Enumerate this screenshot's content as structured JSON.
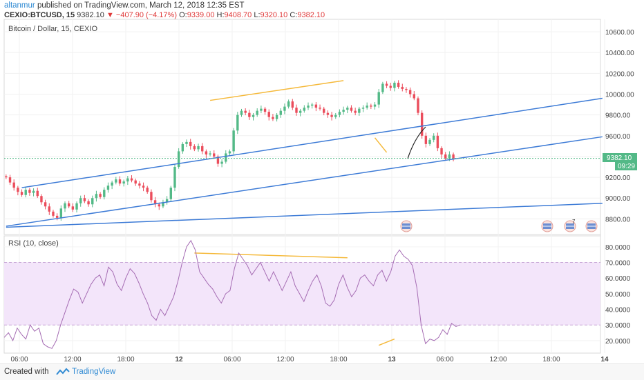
{
  "header": {
    "author": "altanmur",
    "published_text": "published on TradingView.com, March 12, 2018 12:35 EST",
    "symbol": "CEXIO:BTCUSD, 15",
    "last": "9382.10",
    "change": "−407.90 (−4.17%)",
    "o_label": "O:",
    "o_value": "9339.00",
    "h_label": "H:",
    "h_value": "9408.70",
    "l_label": "L:",
    "l_value": "9320.10",
    "c_label": "C:",
    "c_value": "9382.10"
  },
  "price_pane": {
    "title": "Bitcoin / Dollar, 15, CEXIO",
    "last_price": "9382.10",
    "countdown": "09:29",
    "event_badge_count": "7"
  },
  "rsi_pane": {
    "title": "RSI (10, close)"
  },
  "footer": {
    "created_with": "Created with",
    "brand": "TradingView"
  },
  "colors": {
    "up": "#53b987",
    "down": "#eb4d5c",
    "trend": "#3d7bd6",
    "divergence": "#f5b93a",
    "rsi_line": "#a56cb3",
    "rsi_band": "#f3e5fa"
  },
  "chart_data": [
    {
      "type": "candlestick",
      "title": "Bitcoin / Dollar, 15, CEXIO",
      "ylim": [
        8650,
        10720
      ],
      "y_ticks": [
        "10600.00",
        "10400.00",
        "10200.00",
        "10000.00",
        "9800.00",
        "9600.00",
        "9400.00",
        "9200.00",
        "9000.00",
        "8800.00"
      ],
      "x_ticks": [
        "06:00",
        "12:00",
        "18:00",
        "12",
        "06:00",
        "12:00",
        "18:00",
        "13",
        "06:00",
        "12:00",
        "18:00",
        "14"
      ],
      "closes": [
        9200,
        9150,
        9100,
        9060,
        9030,
        9080,
        9050,
        9070,
        9020,
        8960,
        8920,
        8870,
        8830,
        8810,
        8900,
        8950,
        8920,
        8890,
        8950,
        9000,
        8970,
        8940,
        9000,
        9040,
        9010,
        9080,
        9120,
        9150,
        9180,
        9140,
        9160,
        9190,
        9170,
        9140,
        9120,
        9100,
        9060,
        8980,
        8940,
        8920,
        8960,
        8990,
        9100,
        9300,
        9450,
        9520,
        9540,
        9500,
        9470,
        9500,
        9450,
        9420,
        9430,
        9400,
        9330,
        9350,
        9430,
        9450,
        9650,
        9800,
        9840,
        9820,
        9780,
        9800,
        9840,
        9860,
        9830,
        9780,
        9760,
        9800,
        9840,
        9880,
        9930,
        9870,
        9820,
        9840,
        9870,
        9890,
        9900,
        9870,
        9860,
        9820,
        9800,
        9780,
        9800,
        9830,
        9850,
        9870,
        9840,
        9820,
        9860,
        9870,
        9890,
        9880,
        9900,
        10020,
        10100,
        10080,
        10060,
        10110,
        10070,
        10050,
        10040,
        10000,
        9960,
        9820,
        9600,
        9520,
        9560,
        9600,
        9480,
        9420,
        9380,
        9420,
        9382
      ],
      "current_price": 9382.1,
      "trendlines": [
        {
          "name": "upper-channel",
          "from": [
            4,
            9100
          ],
          "to": [
            152,
            9960
          ]
        },
        {
          "name": "lower-channel",
          "from": [
            0,
            8730
          ],
          "to": [
            152,
            9590
          ]
        },
        {
          "name": "long-term-support",
          "from": [
            0,
            8720
          ],
          "to": [
            152,
            8950
          ]
        },
        {
          "name": "price-divergence-top",
          "from": [
            52,
            9940
          ],
          "to": [
            86,
            10130
          ]
        },
        {
          "name": "price-divergence-drop",
          "from": [
            94,
            9580
          ],
          "to": [
            97,
            9440
          ]
        }
      ]
    },
    {
      "type": "line",
      "title": "RSI (10, close)",
      "ylim": [
        12,
        87
      ],
      "y_ticks": [
        "80.0000",
        "70.0000",
        "60.0000",
        "50.0000",
        "40.0000",
        "30.0000",
        "20.0000"
      ],
      "band": [
        30,
        70
      ],
      "values": [
        22,
        25,
        20,
        28,
        24,
        21,
        30,
        26,
        28,
        18,
        16,
        15,
        20,
        30,
        38,
        46,
        53,
        51,
        44,
        50,
        56,
        60,
        62,
        55,
        67,
        64,
        56,
        52,
        60,
        66,
        63,
        57,
        50,
        44,
        36,
        33,
        40,
        36,
        42,
        48,
        58,
        70,
        80,
        84,
        78,
        64,
        60,
        56,
        53,
        48,
        44,
        50,
        52,
        66,
        76,
        72,
        68,
        62,
        66,
        70,
        64,
        58,
        64,
        58,
        52,
        58,
        64,
        55,
        50,
        45,
        52,
        58,
        62,
        55,
        44,
        42,
        46,
        56,
        62,
        54,
        48,
        52,
        60,
        62,
        58,
        55,
        62,
        65,
        58,
        64,
        74,
        78,
        74,
        72,
        68,
        54,
        30,
        18,
        21,
        20,
        22,
        27,
        24,
        31,
        29,
        30
      ],
      "trendlines": [
        {
          "name": "rsi-divergence-top",
          "from": [
            48,
            76
          ],
          "to": [
            87,
            73
          ]
        },
        {
          "name": "rsi-divergence-bottom",
          "from": [
            95,
            17
          ],
          "to": [
            99,
            21
          ]
        }
      ]
    }
  ]
}
